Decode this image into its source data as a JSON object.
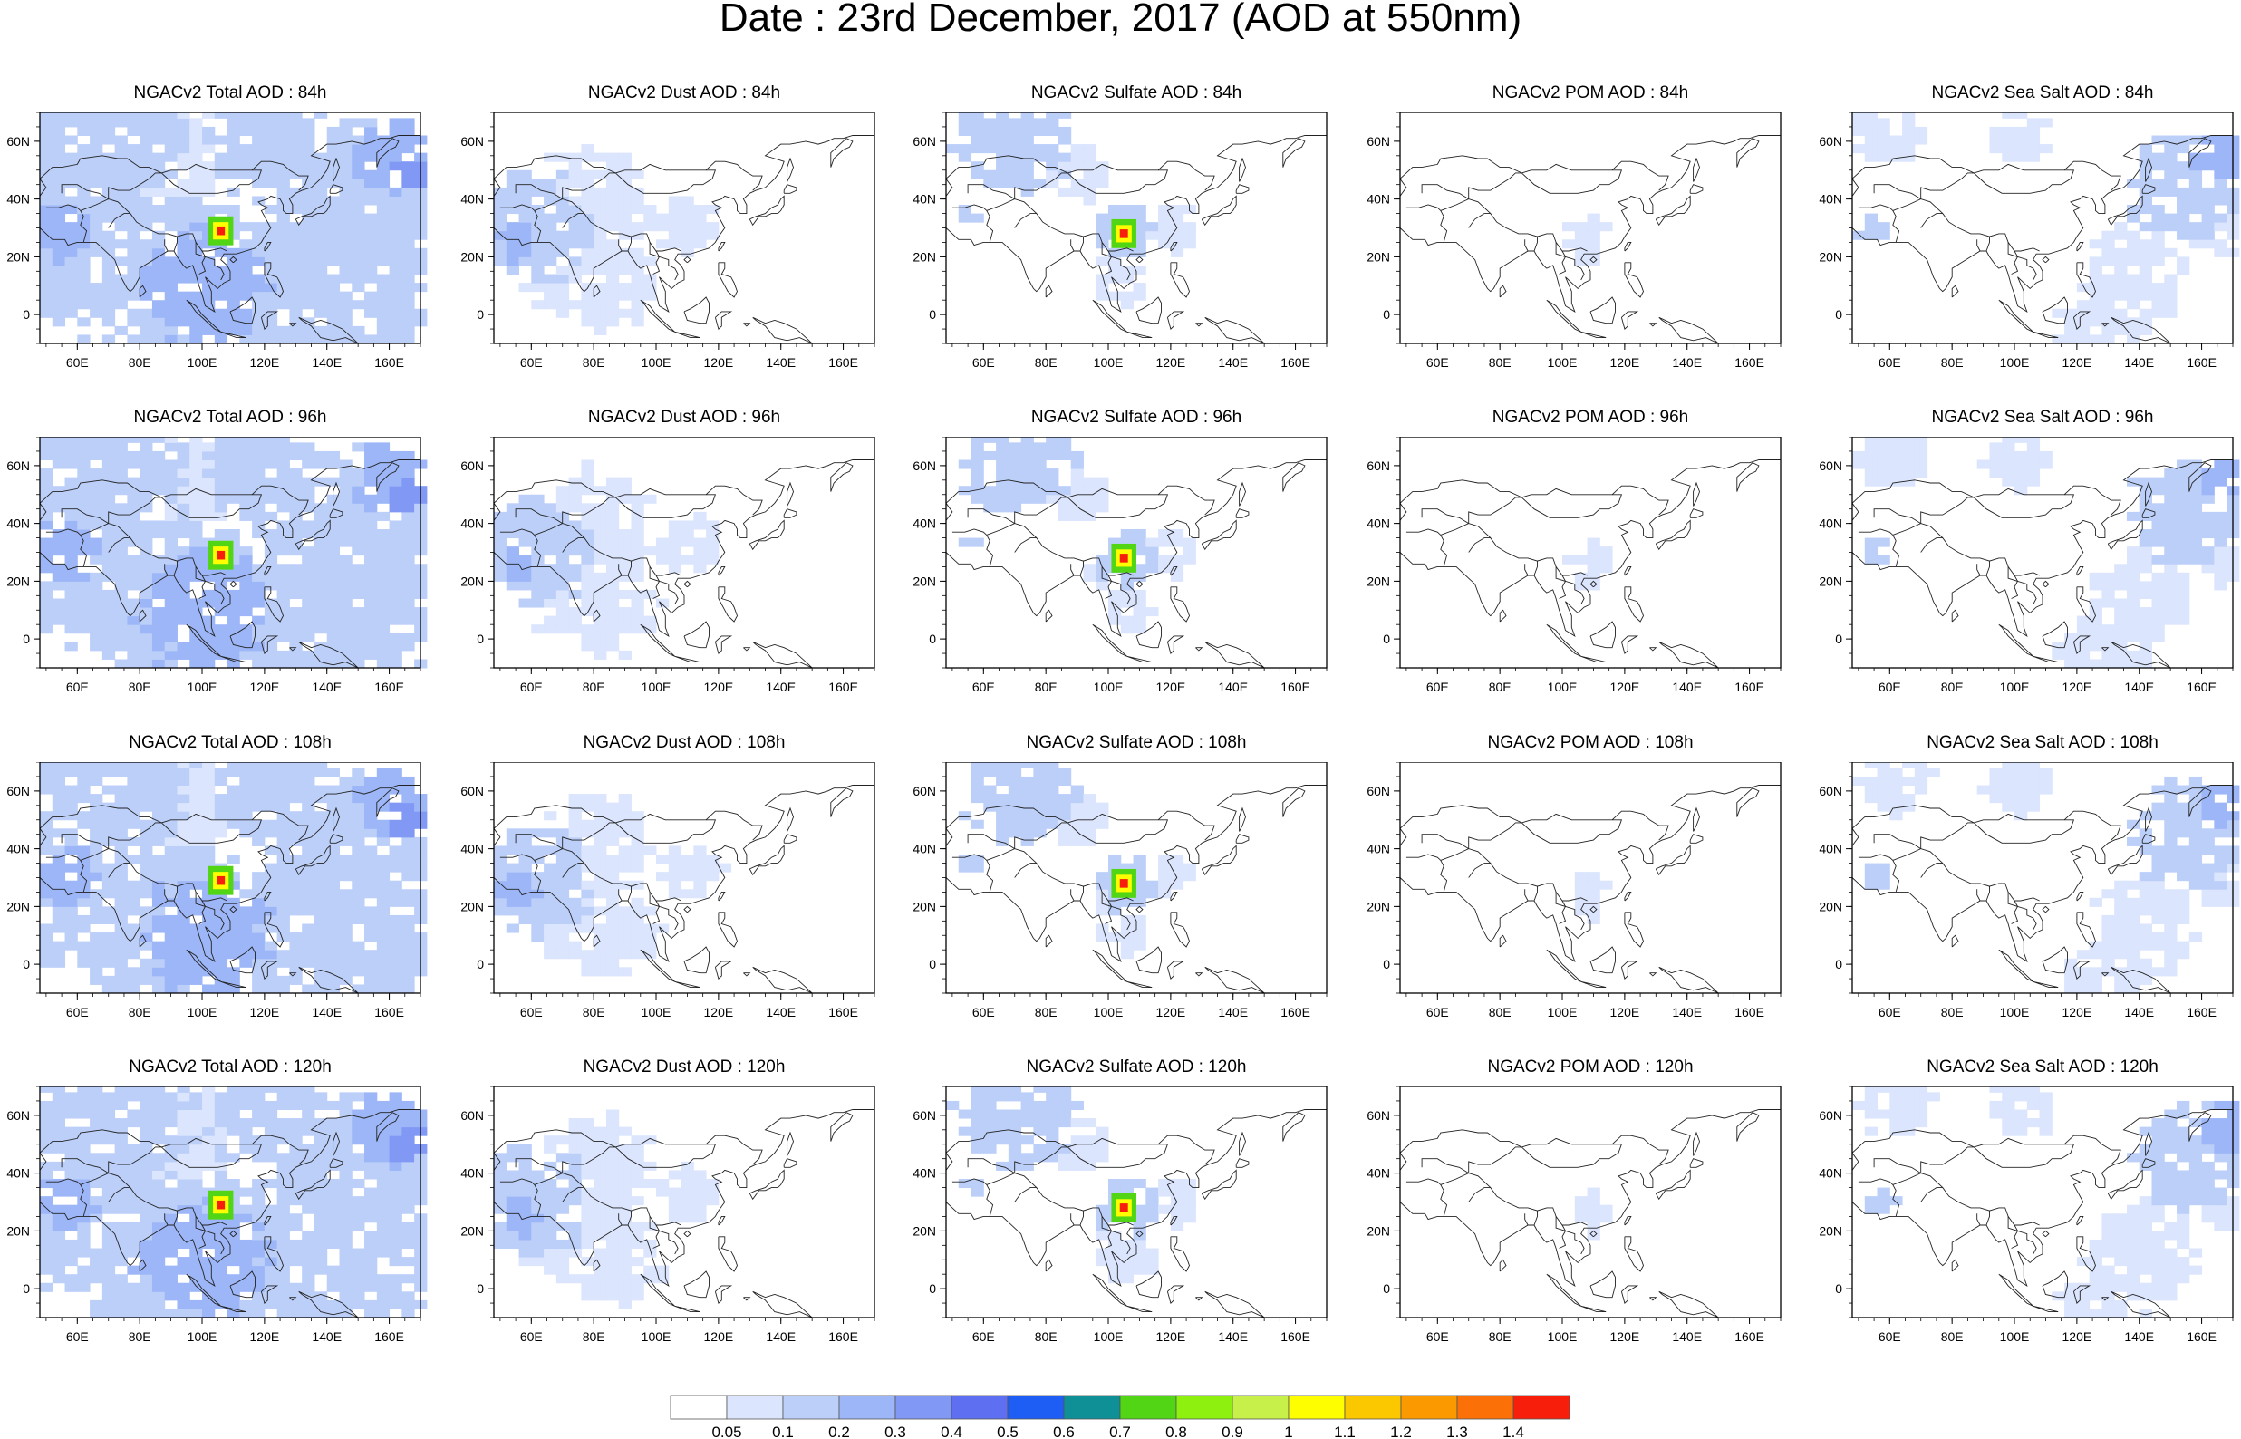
{
  "title": "Date : 23rd December, 2017 (AOD at 550nm)",
  "rows": [
    "84h",
    "96h",
    "108h",
    "120h"
  ],
  "species": [
    {
      "key": "total",
      "color_hint": "#9bb4f5"
    },
    {
      "key": "dust",
      "color_hint": "#c9d7fa"
    },
    {
      "key": "sulfate",
      "color_hint": "#b5c8f8"
    },
    {
      "key": "pom",
      "color_hint": "#dde6fc"
    },
    {
      "key": "seasalt",
      "color_hint": "#b5c8f8"
    }
  ],
  "panels": [
    [
      "NGACv2 Total AOD : 84h",
      "NGACv2 Dust AOD : 84h",
      "NGACv2 Sulfate AOD : 84h",
      "NGACv2 POM AOD : 84h",
      "NGACv2 Sea Salt AOD : 84h"
    ],
    [
      "NGACv2 Total AOD : 96h",
      "NGACv2 Dust AOD : 96h",
      "NGACv2 Sulfate AOD : 96h",
      "NGACv2 POM AOD : 96h",
      "NGACv2 Sea Salt AOD : 96h"
    ],
    [
      "NGACv2 Total AOD : 108h",
      "NGACv2 Dust AOD : 108h",
      "NGACv2 Sulfate AOD : 108h",
      "NGACv2 POM AOD : 108h",
      "NGACv2 Sea Salt AOD : 108h"
    ],
    [
      "NGACv2 Total AOD : 120h",
      "NGACv2 Dust AOD : 120h",
      "NGACv2 Sulfate AOD : 120h",
      "NGACv2 POM AOD : 120h",
      "NGACv2 Sea Salt  AOD : 120h"
    ]
  ],
  "map": {
    "lon_range": [
      48,
      170
    ],
    "lat_range": [
      -10,
      70
    ],
    "lon_ticks": [
      "60E",
      "80E",
      "100E",
      "120E",
      "140E",
      "160E"
    ],
    "lat_ticks": [
      "60N",
      "40N",
      "20N",
      "0"
    ]
  },
  "colorbar": {
    "labels": [
      "0.05",
      "0.1",
      "0.2",
      "0.3",
      "0.4",
      "0.5",
      "0.6",
      "0.7",
      "0.8",
      "0.9",
      "1",
      "1.1",
      "1.2",
      "1.3",
      "1.4"
    ],
    "colors": [
      "#ffffff",
      "#dbe5fd",
      "#bccff9",
      "#9db6f7",
      "#8199f5",
      "#5e70f1",
      "#1e5ef5",
      "#0f8f96",
      "#51d514",
      "#8ef00f",
      "#c8f04a",
      "#fefe00",
      "#fbc800",
      "#fb9a00",
      "#fb7108",
      "#f81e0c"
    ]
  },
  "hotspot_colors": {
    "outer": "#51d514",
    "middle": "#fefe00",
    "core": "#f81e0c"
  }
}
